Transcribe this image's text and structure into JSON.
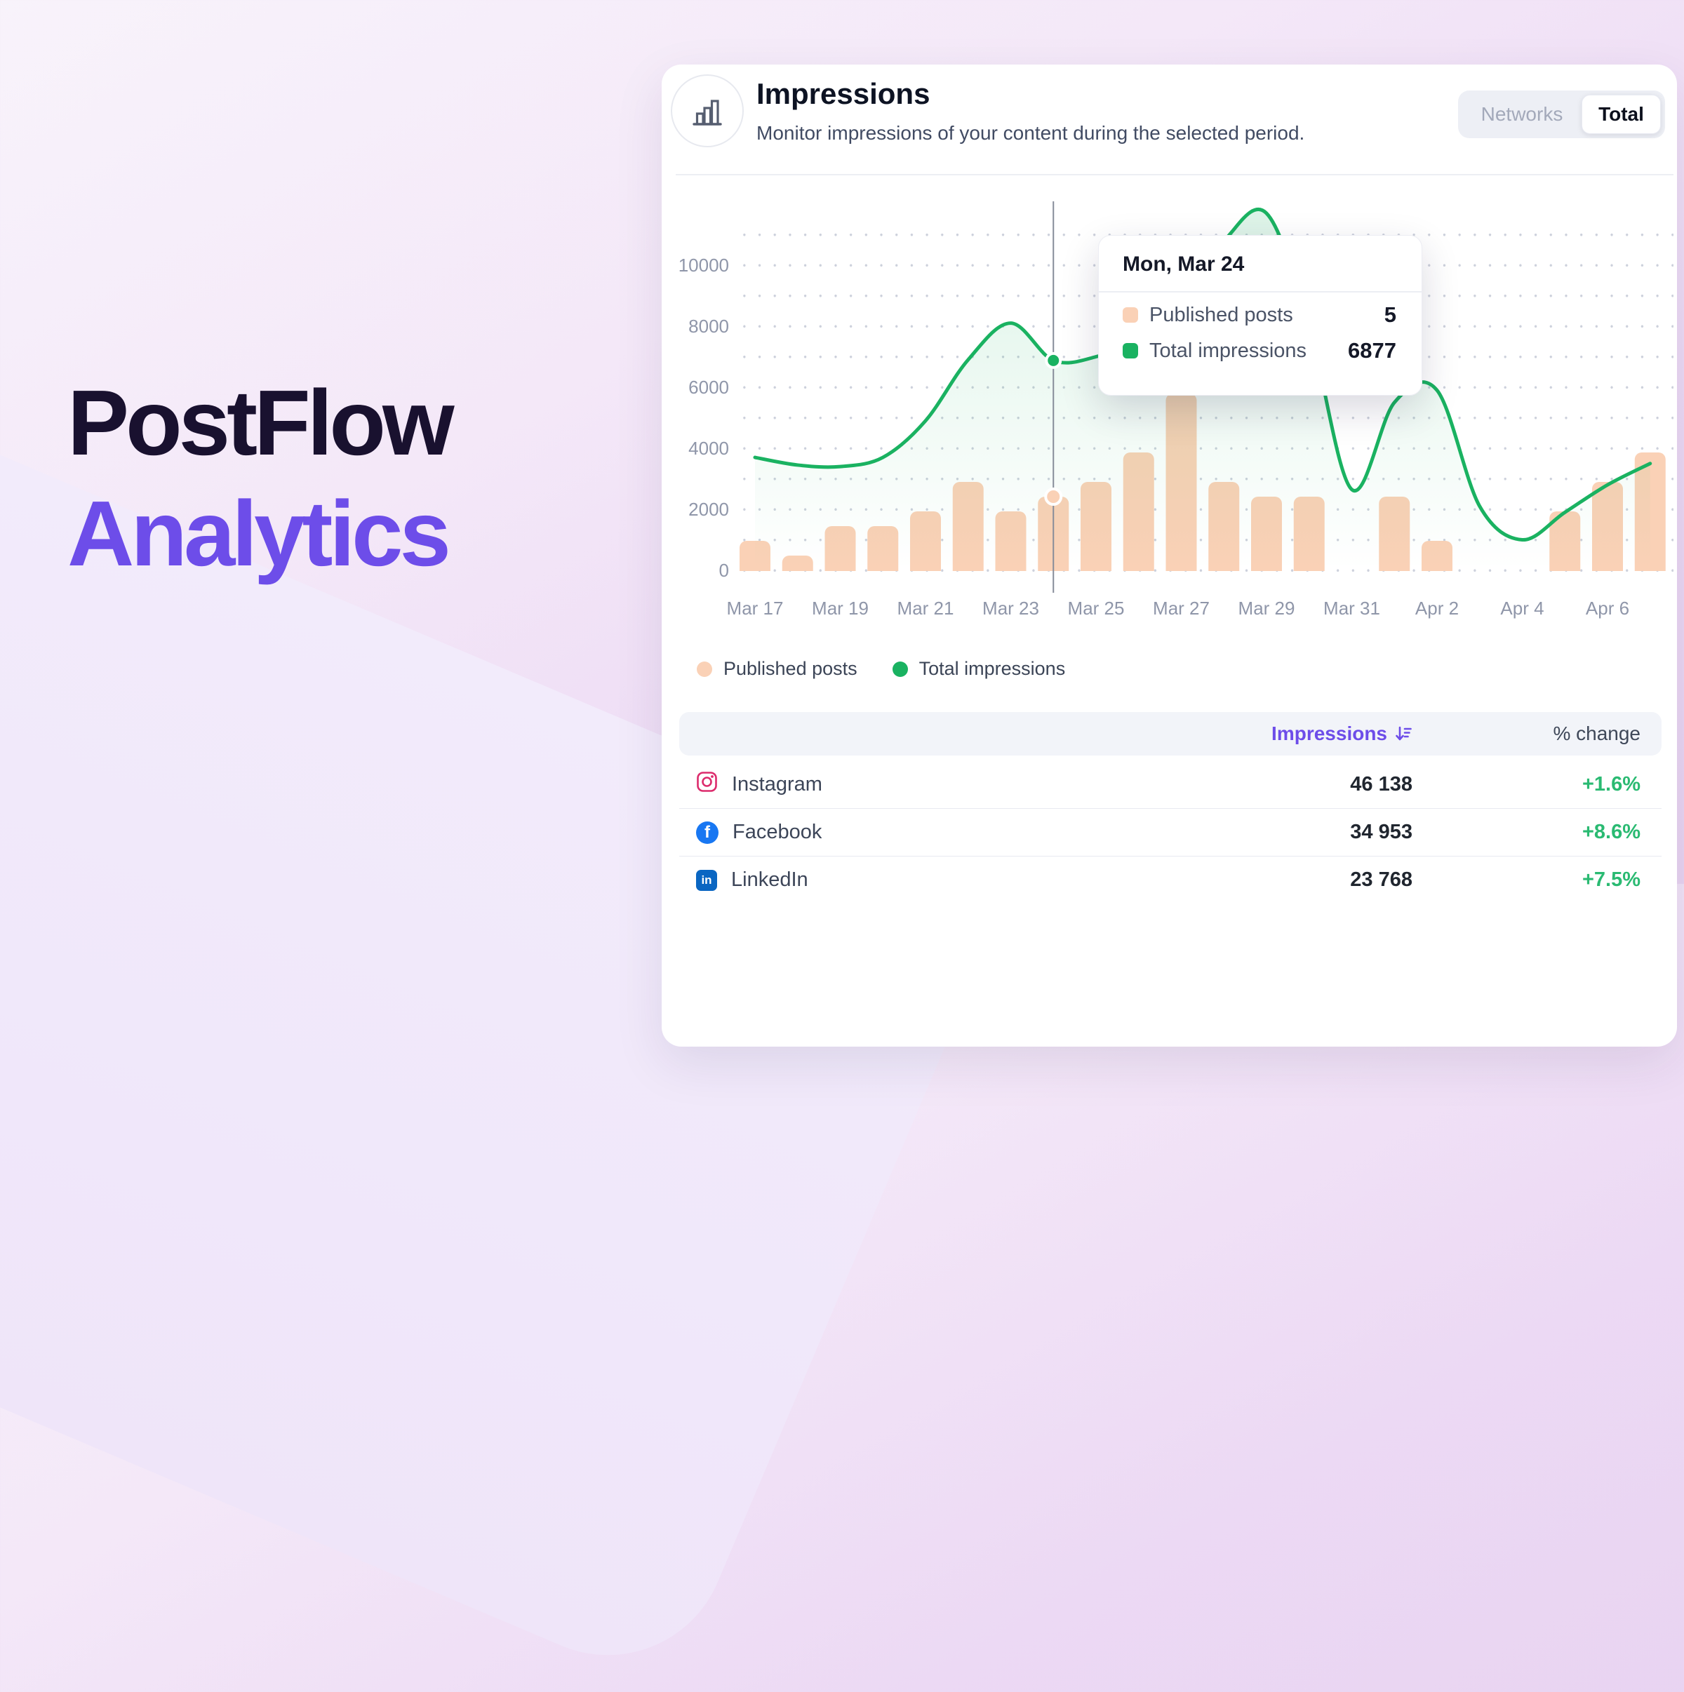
{
  "page": {
    "headline_line1": "PostFlow",
    "headline_line2": "Analytics"
  },
  "colors": {
    "accent": "#6d4de9",
    "headline_dark": "#19112f",
    "green": "#1ab261",
    "peach": "#fad1b6",
    "positive_green": "#2aba72",
    "instagram": "#dc2b6c",
    "facebook": "#1877f2",
    "linkedin": "#0a66c2"
  },
  "card": {
    "title": "Impressions",
    "subtitle": "Monitor impressions of your content during the selected period.",
    "icon": "bar-chart-icon",
    "toggle": {
      "options": [
        "Networks",
        "Total"
      ],
      "selected": "Total"
    },
    "legend": [
      {
        "label": "Published posts",
        "color": "#fad1b6"
      },
      {
        "label": "Total impressions",
        "color": "#1ab261"
      }
    ],
    "tooltip": {
      "title": "Mon, Mar 24",
      "rows": [
        {
          "label": "Published posts",
          "value": "5",
          "color": "#fad1b6"
        },
        {
          "label": "Total impressions",
          "value": "6877",
          "color": "#1ab261"
        }
      ]
    },
    "table": {
      "headers": {
        "impressions": "Impressions",
        "change": "% change"
      },
      "sort_icon": "sort-descending-icon",
      "rows": [
        {
          "network": "Instagram",
          "icon": "instagram-icon",
          "impressions": "46 138",
          "change": "+1.6%"
        },
        {
          "network": "Facebook",
          "icon": "facebook-icon",
          "impressions": "34 953",
          "change": "+8.6%"
        },
        {
          "network": "LinkedIn",
          "icon": "linkedin-icon",
          "impressions": "23 768",
          "change": "+7.5%"
        }
      ]
    }
  },
  "chart_data": {
    "type": "combo",
    "title": "Impressions",
    "x": [
      "Mar 17",
      "Mar 18",
      "Mar 19",
      "Mar 20",
      "Mar 21",
      "Mar 22",
      "Mar 23",
      "Mar 24",
      "Mar 25",
      "Mar 26",
      "Mar 27",
      "Mar 28",
      "Mar 29",
      "Mar 30",
      "Mar 31",
      "Apr 1",
      "Apr 2",
      "Apr 3",
      "Apr 4",
      "Apr 5",
      "Apr 6",
      "Apr 7"
    ],
    "x_tick_labels": [
      "Mar 17",
      "Mar 19",
      "Mar 21",
      "Mar 23",
      "Mar 25",
      "Mar 27",
      "Mar 29",
      "Mar 31",
      "Apr 2",
      "Apr 4",
      "Apr 6"
    ],
    "yticks": [
      0,
      2000,
      4000,
      6000,
      8000,
      10000
    ],
    "ylim": [
      0,
      12100
    ],
    "grid": "dotted",
    "legend_position": "bottom-left",
    "series": [
      {
        "name": "Published posts",
        "type": "bar",
        "color": "#fad1b6",
        "values": [
          2,
          1,
          3,
          3,
          4,
          6,
          4,
          5,
          6,
          8,
          12,
          6,
          5,
          5,
          0,
          5,
          2,
          0,
          0,
          4,
          6,
          8
        ]
      },
      {
        "name": "Total impressions",
        "type": "line",
        "color": "#1ab261",
        "values": [
          3700,
          3450,
          3400,
          3700,
          4900,
          6900,
          8100,
          6877,
          7000,
          7600,
          9000,
          10800,
          11700,
          8000,
          2650,
          5500,
          5900,
          2100,
          1000,
          1900,
          2800,
          3500
        ]
      }
    ],
    "highlight": {
      "x_index": 7,
      "date_label": "Mon, Mar 24",
      "published_posts": 5,
      "total_impressions": 6877
    }
  }
}
